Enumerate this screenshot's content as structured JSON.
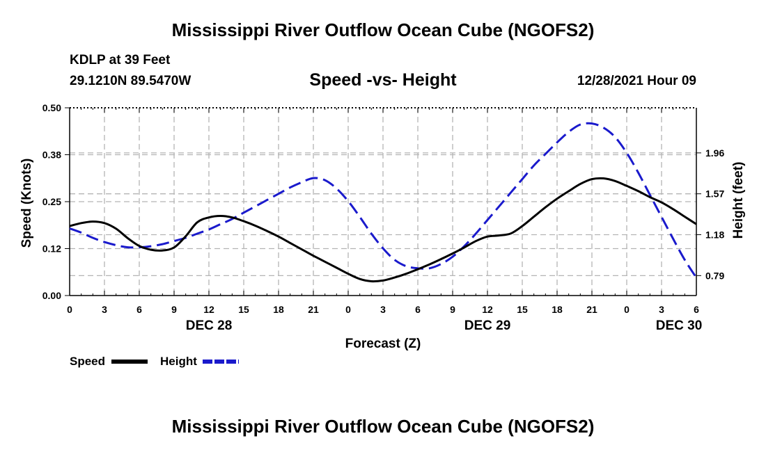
{
  "header": {
    "title": "Mississippi River Outflow Ocean Cube (NGOFS2)",
    "title_repeat": "Mississippi River Outflow Ocean Cube (NGOFS2)",
    "station": "KDLP at 39 Feet",
    "coords": "29.1210N  89.5470W",
    "subtitle": "Speed -vs- Height",
    "datetime": "12/28/2021 Hour 09"
  },
  "colors": {
    "speed": "#000000",
    "height": "#1a1acc",
    "grid": "#b4b4b4"
  },
  "chart_data": {
    "type": "line",
    "title": "Speed -vs- Height",
    "xlabel": "Forecast (Z)",
    "ylabel": "Speed (Knots)",
    "y2label": "Height (feet)",
    "x_range_hours": [
      0,
      54
    ],
    "ylim": [
      0,
      0.5
    ],
    "y2lim": [
      0.6,
      2.39
    ],
    "x_tick_hours": [
      0,
      3,
      6,
      9,
      12,
      15,
      18,
      21,
      24,
      27,
      30,
      33,
      36,
      39,
      42,
      45,
      48,
      51,
      54
    ],
    "x_tick_labels": [
      "0",
      "3",
      "6",
      "9",
      "12",
      "15",
      "18",
      "21",
      "0",
      "3",
      "6",
      "9",
      "12",
      "15",
      "18",
      "21",
      "0",
      "3",
      "6"
    ],
    "y_ticks": [
      0.0,
      0.125,
      0.25,
      0.375,
      0.5
    ],
    "y_tick_labels": [
      "0.00",
      "0.12",
      "0.25",
      "0.38",
      "0.50"
    ],
    "y2_ticks": [
      0.79,
      1.18,
      1.57,
      1.96
    ],
    "y2_tick_labels": [
      "0.79",
      "1.18",
      "1.57",
      "1.96"
    ],
    "date_labels": [
      {
        "hour": 12,
        "label": "DEC 28"
      },
      {
        "hour": 36,
        "label": "DEC 29"
      },
      {
        "hour": 52.5,
        "label": "DEC 30"
      }
    ],
    "legend": {
      "position": "bottom-left",
      "speed_label": "Speed",
      "height_label": "Height"
    },
    "series": [
      {
        "name": "Speed",
        "axis": "left",
        "style": "solid",
        "x": [
          0,
          1,
          2,
          3,
          4,
          5,
          6,
          7,
          8,
          9,
          10,
          11,
          12,
          13,
          14,
          15,
          16,
          17,
          18,
          19,
          20,
          21,
          22,
          23,
          24,
          25,
          26,
          27,
          28,
          29,
          30,
          31,
          32,
          33,
          34,
          35,
          36,
          37,
          38,
          39,
          40,
          41,
          42,
          43,
          44,
          45,
          46,
          47,
          48,
          49,
          50,
          51,
          52,
          53,
          54
        ],
        "values": [
          0.185,
          0.193,
          0.197,
          0.193,
          0.178,
          0.153,
          0.132,
          0.122,
          0.12,
          0.128,
          0.158,
          0.195,
          0.208,
          0.212,
          0.208,
          0.198,
          0.186,
          0.172,
          0.157,
          0.14,
          0.123,
          0.106,
          0.09,
          0.074,
          0.058,
          0.044,
          0.038,
          0.04,
          0.048,
          0.058,
          0.07,
          0.083,
          0.097,
          0.112,
          0.128,
          0.145,
          0.157,
          0.16,
          0.165,
          0.185,
          0.21,
          0.235,
          0.258,
          0.278,
          0.297,
          0.31,
          0.312,
          0.305,
          0.292,
          0.278,
          0.262,
          0.248,
          0.23,
          0.21,
          0.19
        ]
      },
      {
        "name": "Height",
        "axis": "right",
        "style": "dashed",
        "x": [
          0,
          1,
          2,
          3,
          4,
          5,
          6,
          7,
          8,
          9,
          10,
          11,
          12,
          13,
          14,
          15,
          16,
          17,
          18,
          19,
          20,
          21,
          22,
          23,
          24,
          25,
          26,
          27,
          28,
          29,
          30,
          31,
          32,
          33,
          34,
          35,
          36,
          37,
          38,
          39,
          40,
          41,
          42,
          43,
          44,
          45,
          46,
          47,
          48,
          49,
          50,
          51,
          52,
          53,
          54
        ],
        "values": [
          1.24,
          1.2,
          1.15,
          1.11,
          1.08,
          1.06,
          1.06,
          1.07,
          1.09,
          1.12,
          1.15,
          1.19,
          1.23,
          1.28,
          1.33,
          1.39,
          1.45,
          1.51,
          1.57,
          1.63,
          1.68,
          1.72,
          1.7,
          1.62,
          1.5,
          1.35,
          1.19,
          1.05,
          0.94,
          0.88,
          0.86,
          0.86,
          0.9,
          0.97,
          1.07,
          1.19,
          1.32,
          1.45,
          1.58,
          1.71,
          1.84,
          1.95,
          2.06,
          2.16,
          2.23,
          2.24,
          2.2,
          2.11,
          1.96,
          1.77,
          1.56,
          1.35,
          1.14,
          0.94,
          0.77
        ]
      }
    ]
  }
}
